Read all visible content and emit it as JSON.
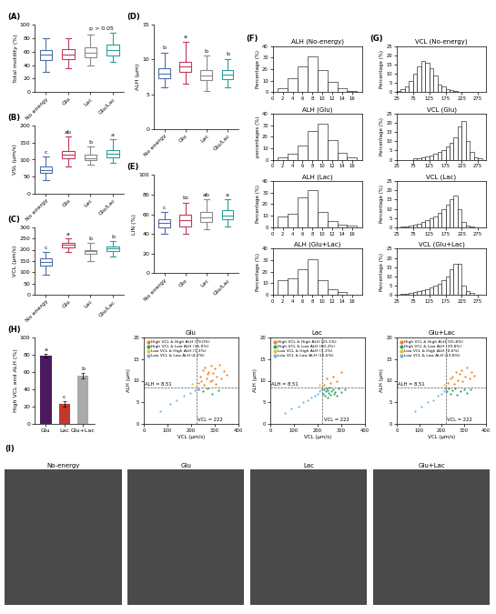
{
  "chart_data": [
    {
      "type": "box",
      "panel_label": "(A)",
      "ylabel": "Total motility (%)",
      "categories": [
        "No energy",
        "Glu",
        "Lac",
        "Glu/Lac"
      ],
      "colors": [
        "#4a6fa5",
        "#c0395a",
        "#8a8a8a",
        "#2aa198"
      ],
      "stats": [
        {
          "min": 30,
          "q1": 48,
          "median": 55,
          "q3": 62,
          "max": 80
        },
        {
          "min": 35,
          "q1": 49,
          "median": 56,
          "q3": 63,
          "max": 80
        },
        {
          "min": 40,
          "q1": 52,
          "median": 58,
          "q3": 66,
          "max": 85
        },
        {
          "min": 45,
          "q1": 54,
          "median": 62,
          "q3": 70,
          "max": 88
        }
      ],
      "annotation": "p > 0.05",
      "ylim": [
        0,
        100
      ],
      "yticks": [
        0,
        20,
        40,
        60,
        80,
        100
      ]
    },
    {
      "type": "box",
      "panel_label": "(B)",
      "ylabel": "VSL (μm/s)",
      "categories": [
        "No energy",
        "Glu",
        "Lac",
        "Glu/Lac"
      ],
      "colors": [
        "#4a6fa5",
        "#c0395a",
        "#8a8a8a",
        "#2aa198"
      ],
      "stats": [
        {
          "min": 40,
          "q1": 60,
          "median": 70,
          "q3": 80,
          "max": 110
        },
        {
          "min": 80,
          "q1": 105,
          "median": 115,
          "q3": 125,
          "max": 170
        },
        {
          "min": 85,
          "q1": 98,
          "median": 105,
          "q3": 115,
          "max": 140
        },
        {
          "min": 90,
          "q1": 108,
          "median": 118,
          "q3": 128,
          "max": 160
        }
      ],
      "group_letters": [
        "c",
        "ab",
        "b",
        "a"
      ],
      "ylim": [
        0,
        200
      ],
      "yticks": [
        0,
        50,
        100,
        150,
        200
      ]
    },
    {
      "type": "box",
      "panel_label": "(C)",
      "ylabel": "VCL (μm/s)",
      "categories": [
        "No energy",
        "Glu",
        "Lac",
        "Glu/Lac"
      ],
      "colors": [
        "#4a6fa5",
        "#c0395a",
        "#8a8a8a",
        "#2aa198"
      ],
      "stats": [
        {
          "min": 90,
          "q1": 130,
          "median": 145,
          "q3": 160,
          "max": 190
        },
        {
          "min": 190,
          "q1": 210,
          "median": 222,
          "q3": 230,
          "max": 250
        },
        {
          "min": 150,
          "q1": 180,
          "median": 192,
          "q3": 200,
          "max": 230
        },
        {
          "min": 170,
          "q1": 192,
          "median": 205,
          "q3": 215,
          "max": 240
        }
      ],
      "group_letters": [
        "c",
        "a",
        "b",
        "b"
      ],
      "ylim": [
        0,
        300
      ],
      "yticks": [
        0,
        50,
        100,
        150,
        200,
        250,
        300
      ]
    },
    {
      "type": "box",
      "panel_label": "(D)",
      "ylabel": "ALH (μm)",
      "categories": [
        "No energy",
        "Glu",
        "Lac",
        "Glu/Lac"
      ],
      "colors": [
        "#4a6fa5",
        "#c0395a",
        "#8a8a8a",
        "#2aa198"
      ],
      "stats": [
        {
          "min": 6,
          "q1": 7.3,
          "median": 8,
          "q3": 8.7,
          "max": 11
        },
        {
          "min": 6.5,
          "q1": 8.2,
          "median": 9,
          "q3": 9.7,
          "max": 12.5
        },
        {
          "min": 5.5,
          "q1": 7,
          "median": 7.7,
          "q3": 8.5,
          "max": 10.5
        },
        {
          "min": 6,
          "q1": 7.2,
          "median": 7.8,
          "q3": 8.4,
          "max": 10
        }
      ],
      "group_letters": [
        "b",
        "a",
        "b",
        "b"
      ],
      "ylim": [
        0,
        15
      ],
      "yticks": [
        0,
        5,
        10,
        15
      ]
    },
    {
      "type": "box",
      "panel_label": "(E)",
      "ylabel": "LIN (%)",
      "categories": [
        "No energy",
        "Glu",
        "Lac",
        "Glu/Lac"
      ],
      "colors": [
        "#4a6fa5",
        "#c0395a",
        "#8a8a8a",
        "#2aa198"
      ],
      "stats": [
        {
          "min": 40,
          "q1": 47,
          "median": 51,
          "q3": 55,
          "max": 62
        },
        {
          "min": 40,
          "q1": 48,
          "median": 54,
          "q3": 60,
          "max": 72
        },
        {
          "min": 45,
          "q1": 52,
          "median": 57,
          "q3": 62,
          "max": 75
        },
        {
          "min": 48,
          "q1": 55,
          "median": 59,
          "q3": 64,
          "max": 75
        }
      ],
      "group_letters": [
        "c",
        "bc",
        "ab",
        "a"
      ],
      "ylim": [
        0,
        100
      ],
      "yticks": [
        0,
        20,
        40,
        60,
        80,
        100
      ]
    },
    {
      "type": "histogram",
      "panel_label": "(F)",
      "title": "ALH (No-energy)",
      "ylabel": "Percentage (%)",
      "bins": [
        1,
        3,
        5,
        7,
        9,
        11,
        13,
        15,
        17
      ],
      "counts": [
        3,
        12,
        22,
        31,
        19,
        9,
        3,
        1
      ],
      "xlim": [
        0,
        18
      ],
      "xticks": [
        0,
        2,
        4,
        6,
        8,
        10,
        12,
        14,
        16
      ],
      "ylim": [
        0,
        40
      ],
      "yticks": [
        0,
        10,
        20,
        30,
        40
      ]
    },
    {
      "type": "histogram",
      "title": "ALH (Glu)",
      "ylabel": "percentages (%)",
      "bins": [
        1,
        3,
        5,
        7,
        9,
        11,
        13,
        15,
        17
      ],
      "counts": [
        2,
        5,
        12,
        25,
        31,
        17,
        6,
        2
      ],
      "xlim": [
        0,
        18
      ],
      "xticks": [
        0,
        2,
        4,
        6,
        8,
        10,
        12,
        14,
        16
      ],
      "ylim": [
        0,
        40
      ],
      "yticks": [
        0,
        10,
        20,
        30,
        40
      ]
    },
    {
      "type": "histogram",
      "title": "ALH (Lac)",
      "ylabel": "Percentage (%)",
      "bins": [
        1,
        3,
        5,
        7,
        9,
        11,
        13,
        15,
        17
      ],
      "counts": [
        9,
        12,
        26,
        32,
        13,
        5,
        2,
        1
      ],
      "xlim": [
        0,
        18
      ],
      "xticks": [
        0,
        2,
        4,
        6,
        8,
        10,
        12,
        14,
        16
      ],
      "ylim": [
        0,
        40
      ],
      "yticks": [
        0,
        10,
        20,
        30,
        40
      ]
    },
    {
      "type": "histogram",
      "title": "ALH (Glu+Lac)",
      "ylabel": "Percentage (%)",
      "bins": [
        1,
        3,
        5,
        7,
        9,
        11,
        13,
        15,
        17
      ],
      "counts": [
        13,
        14,
        22,
        31,
        13,
        5,
        2,
        0
      ],
      "xlim": [
        0,
        18
      ],
      "xticks": [
        0,
        2,
        4,
        6,
        8,
        10,
        12,
        14,
        16
      ],
      "ylim": [
        0,
        40
      ],
      "yticks": [
        0,
        10,
        20,
        30,
        40
      ]
    },
    {
      "type": "histogram",
      "panel_label": "(G)",
      "title": "VCL (No-energy)",
      "ylabel": "Percentage (%)",
      "bins": [
        25,
        37.5,
        50,
        62.5,
        75,
        87.5,
        100,
        112.5,
        125,
        137.5,
        150,
        162.5,
        175,
        187.5,
        200,
        212.5,
        225,
        237.5,
        250,
        262.5,
        275,
        287.5,
        300
      ],
      "counts": [
        0.5,
        1.5,
        3,
        6,
        10,
        14,
        17,
        16,
        13,
        9,
        4,
        3,
        1.5,
        1,
        0.5,
        0,
        0,
        0,
        0,
        0,
        0,
        0
      ],
      "xlim": [
        25,
        300
      ],
      "xticks": [
        25,
        75,
        125,
        175,
        225,
        275
      ],
      "ylim": [
        0,
        25
      ],
      "yticks": [
        0,
        5,
        10,
        15,
        20,
        25
      ]
    },
    {
      "type": "histogram",
      "title": "VCL (Glu)",
      "ylabel": "Percentage (%)",
      "bins": [
        25,
        37.5,
        50,
        62.5,
        75,
        87.5,
        100,
        112.5,
        125,
        137.5,
        150,
        162.5,
        175,
        187.5,
        200,
        212.5,
        225,
        237.5,
        250,
        262.5,
        275,
        287.5,
        300
      ],
      "counts": [
        0,
        0,
        0,
        0,
        0.5,
        0.5,
        1,
        1.5,
        2,
        3,
        4,
        5,
        7,
        9,
        12,
        18,
        21,
        10,
        4,
        1,
        0.5,
        0
      ],
      "xlim": [
        25,
        300
      ],
      "xticks": [
        25,
        75,
        125,
        175,
        225,
        275
      ],
      "ylim": [
        0,
        25
      ],
      "yticks": [
        0,
        5,
        10,
        15,
        20,
        25
      ]
    },
    {
      "type": "histogram",
      "title": "VCL (Lac)",
      "ylabel": "Percentage (%)",
      "bins": [
        25,
        37.5,
        50,
        62.5,
        75,
        87.5,
        100,
        112.5,
        125,
        137.5,
        150,
        162.5,
        175,
        187.5,
        200,
        212.5,
        225,
        237.5,
        250,
        262.5,
        275,
        287.5,
        300
      ],
      "counts": [
        0,
        0.5,
        0.5,
        1,
        1.5,
        2,
        3,
        4,
        5,
        6,
        8,
        10,
        12,
        15,
        17,
        10,
        3,
        1,
        0.5,
        0,
        0,
        0
      ],
      "xlim": [
        25,
        300
      ],
      "xticks": [
        25,
        75,
        125,
        175,
        225,
        275
      ],
      "ylim": [
        0,
        25
      ],
      "yticks": [
        0,
        5,
        10,
        15,
        20,
        25
      ]
    },
    {
      "type": "histogram",
      "title": "VCL (Glu+Lac)",
      "ylabel": "Percentage (%)",
      "bins": [
        25,
        37.5,
        50,
        62.5,
        75,
        87.5,
        100,
        112.5,
        125,
        137.5,
        150,
        162.5,
        175,
        187.5,
        200,
        212.5,
        225,
        237.5,
        250,
        262.5,
        275,
        287.5,
        300
      ],
      "counts": [
        0,
        0.5,
        0.5,
        1,
        1.5,
        2,
        2.5,
        3,
        4,
        5,
        6,
        8,
        10,
        14,
        17,
        17,
        5,
        2,
        1,
        0,
        0,
        0
      ],
      "xlim": [
        25,
        300
      ],
      "xticks": [
        25,
        75,
        125,
        175,
        225,
        275
      ],
      "ylim": [
        0,
        25
      ],
      "yticks": [
        0,
        5,
        10,
        15,
        20,
        25
      ]
    },
    {
      "type": "bar",
      "panel_label": "(H)",
      "ylabel": "High VCL and ALH (%)",
      "categories": [
        "Glu",
        "Lac",
        "Glu+Lac"
      ],
      "values": [
        79,
        23,
        56
      ],
      "errors": [
        2,
        3,
        3
      ],
      "colors": [
        "#4b1a5e",
        "#c0392b",
        "#aaaaaa"
      ],
      "group_letters": [
        "a",
        "c",
        "b"
      ],
      "ylim": [
        0,
        100
      ],
      "yticks": [
        0,
        20,
        40,
        60,
        80,
        100
      ]
    },
    {
      "type": "scatter",
      "title": "Glu",
      "xlabel": "VCL (μm/s)",
      "ylabel": "ALH (μm)",
      "legend": "upper left",
      "thresholds": {
        "x": 222,
        "y": 8.51
      },
      "threshold_labels": {
        "x": "VCL = 222",
        "y": "ALH = 8.51"
      },
      "series": [
        {
          "name": "High VCL & High ALH (79.0%)",
          "color": "#f07f1e",
          "x": [
            230,
            240,
            245,
            250,
            255,
            260,
            265,
            270,
            275,
            280,
            285,
            290,
            295,
            300,
            305,
            310,
            320,
            330,
            340,
            350
          ],
          "y": [
            9.5,
            11,
            10,
            12.5,
            9,
            13,
            10.5,
            11.5,
            12,
            9.8,
            13.5,
            10.2,
            11.8,
            12.8,
            9.2,
            11,
            13.8,
            10.6,
            12.2,
            11.4
          ]
        },
        {
          "name": "High VCL & Low ALH (15.0%)",
          "color": "#2ca25f",
          "x": [
            230,
            250,
            270,
            290,
            315
          ],
          "y": [
            8,
            7.5,
            8.2,
            7,
            7.8
          ]
        },
        {
          "name": "Low VCL & High ALH (1.3%)",
          "color": "#e8c21a",
          "x": [
            205
          ],
          "y": [
            9.2
          ]
        },
        {
          "name": "Low VCL & Low ALH (4.7%)",
          "color": "#6bb5e6",
          "x": [
            70,
            110,
            140,
            170,
            195,
            215
          ],
          "y": [
            3,
            4.5,
            5.5,
            6.5,
            7.2,
            7.8
          ]
        }
      ],
      "xlim": [
        0,
        400
      ],
      "xticks": [
        0,
        100,
        200,
        300,
        400
      ],
      "ylim": [
        0,
        20
      ],
      "yticks": [
        0,
        5,
        10,
        15,
        20
      ]
    },
    {
      "type": "scatter",
      "title": "Lac",
      "xlabel": "VCL (μm/s)",
      "ylabel": "ALH (μm)",
      "legend": "upper left",
      "thresholds": {
        "x": 222,
        "y": 8.51
      },
      "threshold_labels": {
        "x": "VCL = 222",
        "y": "ALH = 8.51"
      },
      "series": [
        {
          "name": "High VCL & High ALH (23.1%)",
          "color": "#f07f1e",
          "x": [
            228,
            240,
            255,
            265,
            280,
            300
          ],
          "y": [
            9,
            10.5,
            9.5,
            11,
            10,
            12
          ]
        },
        {
          "name": "High VCL & Low ALH (60.2%)",
          "color": "#2ca25f",
          "x": [
            225,
            228,
            232,
            235,
            238,
            242,
            245,
            248,
            252,
            256,
            260,
            265,
            270,
            275,
            282,
            290,
            300,
            315
          ],
          "y": [
            7,
            8,
            6.5,
            7.5,
            8.2,
            6,
            7.8,
            7.2,
            8.4,
            6.8,
            7.6,
            8,
            7,
            7.4,
            6.5,
            8.1,
            7.3,
            7.9
          ]
        },
        {
          "name": "Low VCL & High ALH (1.1%)",
          "color": "#e8c21a",
          "x": [
            210
          ],
          "y": [
            9
          ]
        },
        {
          "name": "Low VCL & Low ALH (15.6%)",
          "color": "#6bb5e6",
          "x": [
            60,
            90,
            120,
            140,
            160,
            175,
            190,
            200,
            210,
            218
          ],
          "y": [
            2.5,
            3.5,
            4,
            5,
            5.5,
            6,
            6.5,
            7,
            7.5,
            8
          ]
        }
      ],
      "xlim": [
        0,
        400
      ],
      "xticks": [
        0,
        100,
        200,
        300,
        400
      ],
      "ylim": [
        0,
        20
      ],
      "yticks": [
        0,
        5,
        10,
        15,
        20
      ]
    },
    {
      "type": "scatter",
      "title": "Glu+Lac",
      "xlabel": "VCL (μm/s)",
      "ylabel": "ALH (μm)",
      "legend": "upper left",
      "thresholds": {
        "x": 222,
        "y": 8.51
      },
      "threshold_labels": {
        "x": "VCL = 222",
        "y": "ALH = 8.51"
      },
      "series": [
        {
          "name": "High VCL & High ALH (55.8%)",
          "color": "#f07f1e",
          "x": [
            230,
            240,
            250,
            258,
            265,
            272,
            280,
            288,
            295,
            305,
            315,
            325,
            335,
            345
          ],
          "y": [
            9.5,
            10.5,
            11,
            9.2,
            12,
            10.2,
            11.5,
            12.5,
            9.8,
            11,
            13,
            10.5,
            12,
            11.2
          ]
        },
        {
          "name": "High VCL & Low ALH (29.8%)",
          "color": "#2ca25f",
          "x": [
            226,
            232,
            240,
            250,
            260,
            270,
            285,
            300,
            315,
            330
          ],
          "y": [
            7.5,
            8.2,
            7,
            7.8,
            8.3,
            6.8,
            7.6,
            8,
            7.2,
            7.9
          ]
        },
        {
          "name": "Low VCL & High ALH (0.6%)",
          "color": "#e8c21a",
          "x": [
            212
          ],
          "y": [
            9.1
          ]
        },
        {
          "name": "Low VCL & Low ALH (13.8%)",
          "color": "#6bb5e6",
          "x": [
            80,
            110,
            140,
            165,
            185,
            200,
            210,
            218
          ],
          "y": [
            3,
            4,
            5,
            5.5,
            6.5,
            7,
            7.6,
            8.1
          ]
        }
      ],
      "xlim": [
        0,
        400
      ],
      "xticks": [
        0,
        100,
        200,
        300,
        400
      ],
      "ylim": [
        0,
        20
      ],
      "yticks": [
        0,
        5,
        10,
        15,
        20
      ]
    }
  ],
  "images": {
    "panel_label": "(I)",
    "titles": [
      "No-energy",
      "Glu",
      "Lac",
      "Glu+Lac"
    ]
  }
}
